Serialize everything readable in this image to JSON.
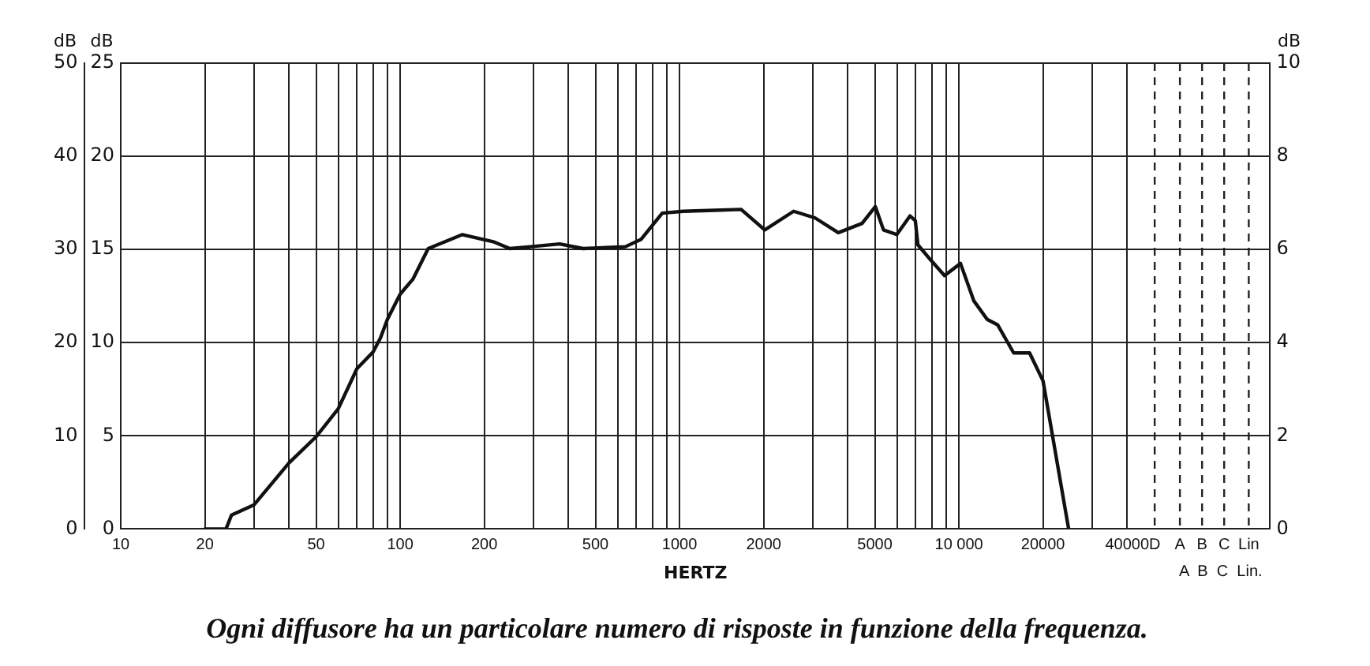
{
  "chart_data": {
    "type": "line",
    "title": "Ogni diffusore ha un particolare numero di risposte in funzione della frequenza.",
    "xlabel": "HERTZ",
    "ylabel": "dB",
    "y2label": "dB",
    "y3label": "dB",
    "log": "x",
    "grid": true,
    "legend": false,
    "marker": "none",
    "line_style": "solid",
    "xlim": [
      10,
      130000
    ],
    "xticks": [
      10,
      20,
      {
        "value": 30,
        "label": null
      },
      {
        "value": 40,
        "label": null
      },
      50,
      {
        "value": 60,
        "label": null
      },
      {
        "value": 70,
        "label": null
      },
      {
        "value": 80,
        "label": null
      },
      {
        "value": 90,
        "label": null
      },
      100,
      200,
      {
        "value": 300,
        "label": null
      },
      {
        "value": 400,
        "label": null
      },
      500,
      {
        "value": 600,
        "label": null
      },
      {
        "value": 700,
        "label": null
      },
      {
        "value": 800,
        "label": null
      },
      {
        "value": 900,
        "label": null
      },
      1000,
      2000,
      {
        "value": 3000,
        "label": null
      },
      {
        "value": 4000,
        "label": null
      },
      5000,
      {
        "value": 6000,
        "label": null
      },
      {
        "value": 7000,
        "label": null
      },
      {
        "value": 8000,
        "label": null
      },
      {
        "value": 9000,
        "label": null
      },
      {
        "value": 10000,
        "label": "10 000"
      },
      20000,
      {
        "value": 30000,
        "label": null
      },
      40000
    ],
    "ylim": [
      0,
      50
    ],
    "yticks": [
      0,
      10,
      20,
      30,
      40,
      50
    ],
    "y2lim": [
      0,
      25
    ],
    "y2ticks": [
      0,
      5,
      10,
      15,
      20,
      25
    ],
    "y3lim": [
      0,
      10
    ],
    "y3ticks": [
      0,
      2,
      4,
      6,
      8,
      10
    ],
    "ref_lines": [
      {
        "axis": "x",
        "value": 50200,
        "label": "D",
        "line_style": "dashed"
      },
      {
        "axis": "x",
        "value": 61800,
        "label": "A",
        "line_style": "dashed"
      },
      {
        "axis": "x",
        "value": 74200,
        "label": "B",
        "line_style": "dashed"
      },
      {
        "axis": "x",
        "value": 89000,
        "label": "C",
        "line_style": "dashed"
      },
      {
        "axis": "x",
        "value": 109000,
        "label": "Lin",
        "line_style": "dashed"
      }
    ],
    "annotations": [
      "A  B  C  Lin."
    ],
    "series": [
      {
        "color": "#111111",
        "x": [
          20,
          23.8,
          24.9,
          30,
          40,
          50,
          60,
          70,
          80,
          85,
          90,
          100,
          111,
          126,
          167,
          217,
          247,
          293,
          372,
          452,
          640,
          729,
          867,
          1030,
          1337,
          1661,
          2018,
          2560,
          3050,
          3700,
          4500,
          5020,
          5370,
          5990,
          6680,
          6980,
          7130,
          7960,
          8880,
          10130,
          11300,
          12620,
          13770,
          15700,
          17900,
          20000,
          24700
        ],
        "values": [
          0,
          0,
          1.5,
          2.6,
          7.1,
          9.9,
          12.9,
          17.2,
          19.0,
          20.5,
          22.5,
          25.2,
          26.8,
          30.1,
          31.6,
          30.8,
          30.1,
          30.3,
          30.6,
          30.1,
          30.3,
          31.1,
          33.9,
          34.1,
          34.2,
          34.3,
          32.1,
          34.1,
          33.4,
          31.8,
          32.8,
          34.6,
          32.1,
          31.6,
          33.6,
          33.1,
          30.5,
          28.8,
          27.2,
          28.5,
          24.5,
          22.5,
          21.9,
          18.9,
          18.9,
          15.9,
          0
        ]
      }
    ]
  }
}
